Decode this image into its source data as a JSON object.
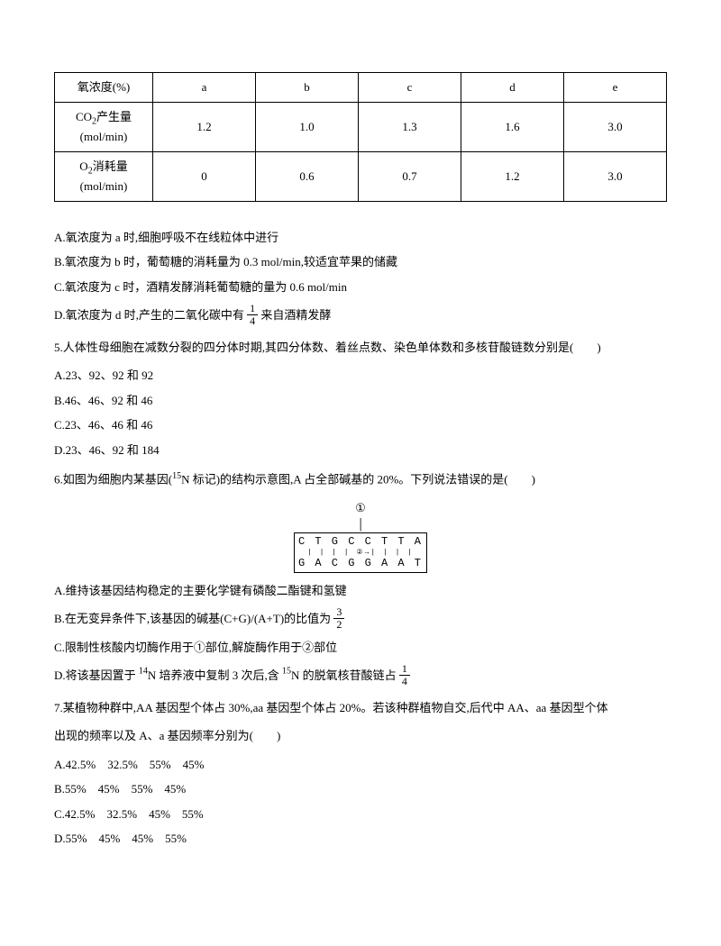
{
  "table": {
    "r1c0": "氧浓度(%)",
    "r1c1": "a",
    "r1c2": "b",
    "r1c3": "c",
    "r1c4": "d",
    "r1c5": "e",
    "r2c0_l1": "CO",
    "r2c0_sub": "2",
    "r2c0_l2": "产生量",
    "r2c0_l3": "(mol/min)",
    "r2c1": "1.2",
    "r2c2": "1.0",
    "r2c3": "1.3",
    "r2c4": "1.6",
    "r2c5": "3.0",
    "r3c0_l1": "O",
    "r3c0_sub": "2",
    "r3c0_l2": "消耗量",
    "r3c0_l3": "(mol/min)",
    "r3c1": "0",
    "r3c2": "0.6",
    "r3c3": "0.7",
    "r3c4": "1.2",
    "r3c5": "3.0"
  },
  "q4": {
    "optA": "A.氧浓度为 a 时,细胞呼吸不在线粒体中进行",
    "optB": "B.氧浓度为 b 时，葡萄糖的消耗量为 0.3 mol/min,较适宜苹果的储藏",
    "optC": "C.氧浓度为 c 时，酒精发酵消耗葡萄糖的量为 0.6 mol/min",
    "optD_pre": "D.氧浓度为 d 时,产生的二氧化碳中有",
    "optD_num": "1",
    "optD_den": "4",
    "optD_post": "来自酒精发酵"
  },
  "q5": {
    "stem": "5.人体性母细胞在减数分裂的四分体时期,其四分体数、着丝点数、染色单体数和多核苷酸链数分别是(　　)",
    "optA": "A.23、92、92 和 92",
    "optB": "B.46、46、92 和 46",
    "optC": "C.23、46、46 和 46",
    "optD": "D.23、46、92 和 184"
  },
  "q6": {
    "stem_pre": "6.如图为细胞内某基因(",
    "stem_sup": "15",
    "stem_mid": "N 标记)的结构示意图,A 占全部碱基的 20%。下列说法错误的是(　　)",
    "dna_top": "C T G C   C T T A",
    "dna_bot": "G A C G   G A A T",
    "label1": "①",
    "label2": "②",
    "optA": "A.维持该基因结构稳定的主要化学键有磷酸二酯键和氢键",
    "optB_pre": "B.在无变异条件下,该基因的碱基(C+G)/(A+T)的比值为",
    "optB_num": "3",
    "optB_den": "2",
    "optC": "C.限制性核酸内切酶作用于①部位,解旋酶作用于②部位",
    "optD_pre": "D.将该基因置于 ",
    "optD_sup1": "14",
    "optD_mid1": "N 培养液中复制 3 次后,含 ",
    "optD_sup2": "15",
    "optD_mid2": "N 的脱氧核苷酸链占",
    "optD_num": "1",
    "optD_den": "4"
  },
  "q7": {
    "stem1": "7.某植物种群中,AA 基因型个体占 30%,aa 基因型个体占 20%。若该种群植物自交,后代中 AA、aa 基因型个体",
    "stem2": "出现的频率以及 A、a 基因频率分别为(　　)",
    "optA": "A.42.5%　32.5%　55%　45%",
    "optB": "B.55%　45%　55%　45%",
    "optC": "C.42.5%　32.5%　45%　55%",
    "optD": "D.55%　45%　45%　55%"
  }
}
